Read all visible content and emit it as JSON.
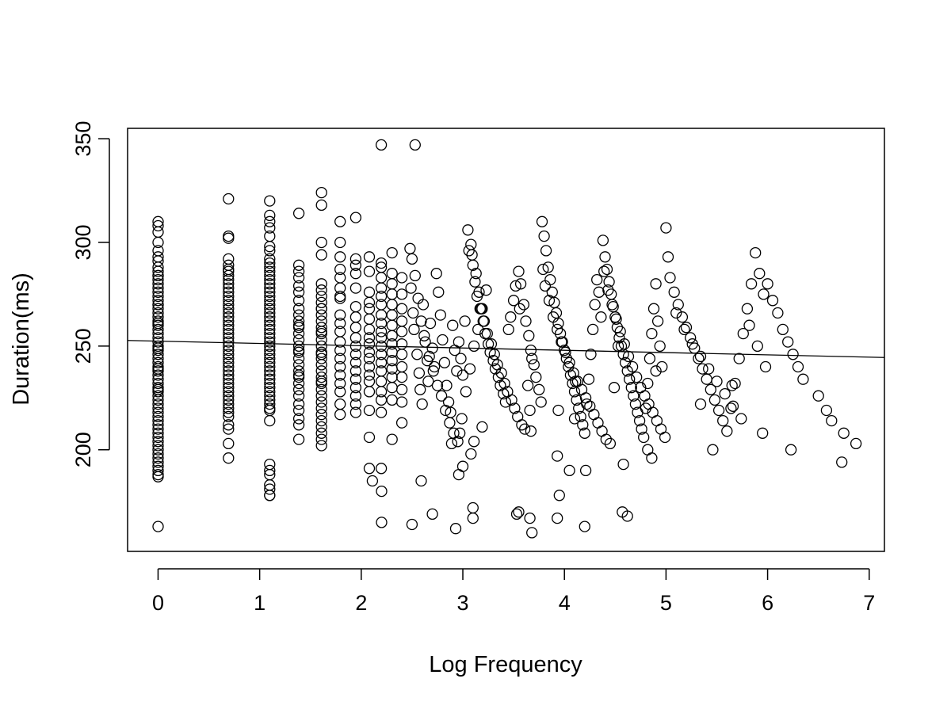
{
  "chart_data": {
    "type": "scatter",
    "xlabel": "Log Frequency",
    "ylabel": "Duration(ms)",
    "xlim": [
      -0.3,
      7.15
    ],
    "ylim": [
      151,
      355
    ],
    "x_ticks": [
      0,
      1,
      2,
      3,
      4,
      5,
      6,
      7
    ],
    "y_ticks": [
      200,
      250,
      300,
      350
    ],
    "regression_line": {
      "x": [
        -0.3,
        7.15
      ],
      "y": [
        252.7,
        244.5
      ]
    },
    "points": {
      "x": [
        0,
        0,
        0,
        0,
        0,
        0,
        0,
        0,
        0,
        0,
        0,
        0,
        0,
        0,
        0,
        0,
        0,
        0,
        0,
        0,
        0,
        0,
        0,
        0,
        0,
        0,
        0,
        0,
        0,
        0,
        0,
        0,
        0,
        0,
        0,
        0,
        0,
        0,
        0,
        0,
        0,
        0,
        0,
        0,
        0,
        0,
        0,
        0,
        0,
        0,
        0,
        0,
        0,
        0,
        0,
        0,
        0,
        0,
        0,
        0,
        0,
        0,
        0,
        0,
        0,
        0.693,
        0.693,
        0.693,
        0.693,
        0.693,
        0.693,
        0.693,
        0.693,
        0.693,
        0.693,
        0.693,
        0.693,
        0.693,
        0.693,
        0.693,
        0.693,
        0.693,
        0.693,
        0.693,
        0.693,
        0.693,
        0.693,
        0.693,
        0.693,
        0.693,
        0.693,
        0.693,
        0.693,
        0.693,
        0.693,
        0.693,
        0.693,
        0.693,
        0.693,
        0.693,
        0.693,
        0.693,
        0.693,
        0.693,
        0.693,
        0.693,
        0.693,
        0.693,
        0.693,
        0.693,
        1.099,
        1.099,
        1.099,
        1.099,
        1.099,
        1.099,
        1.099,
        1.099,
        1.099,
        1.099,
        1.099,
        1.099,
        1.099,
        1.099,
        1.099,
        1.099,
        1.099,
        1.099,
        1.099,
        1.099,
        1.099,
        1.099,
        1.099,
        1.099,
        1.099,
        1.099,
        1.099,
        1.099,
        1.099,
        1.099,
        1.099,
        1.099,
        1.099,
        1.099,
        1.099,
        1.099,
        1.099,
        1.099,
        1.099,
        1.099,
        1.099,
        1.099,
        1.099,
        1.099,
        1.099,
        1.099,
        1.099,
        1.099,
        1.099,
        1.099,
        1.386,
        1.386,
        1.386,
        1.386,
        1.386,
        1.386,
        1.386,
        1.386,
        1.386,
        1.386,
        1.386,
        1.386,
        1.386,
        1.386,
        1.386,
        1.386,
        1.386,
        1.386,
        1.386,
        1.386,
        1.386,
        1.386,
        1.386,
        1.386,
        1.386,
        1.386,
        1.386,
        1.386,
        1.386,
        1.386,
        1.609,
        1.609,
        1.609,
        1.609,
        1.609,
        1.609,
        1.609,
        1.609,
        1.609,
        1.609,
        1.609,
        1.609,
        1.609,
        1.609,
        1.609,
        1.609,
        1.609,
        1.609,
        1.609,
        1.609,
        1.609,
        1.609,
        1.609,
        1.609,
        1.609,
        1.609,
        1.609,
        1.609,
        1.609,
        1.609,
        1.609,
        1.609,
        1.609,
        1.609,
        1.609,
        1.792,
        1.792,
        1.792,
        1.792,
        1.792,
        1.792,
        1.792,
        1.792,
        1.792,
        1.792,
        1.792,
        1.792,
        1.792,
        1.792,
        1.792,
        1.792,
        1.792,
        1.792,
        1.792,
        1.792,
        1.946,
        1.946,
        1.946,
        1.946,
        1.946,
        1.946,
        1.946,
        1.946,
        1.946,
        1.946,
        1.946,
        1.946,
        1.946,
        1.946,
        1.946,
        1.946,
        1.946,
        1.946,
        2.079,
        2.079,
        2.079,
        2.079,
        2.079,
        2.079,
        2.079,
        2.079,
        2.079,
        2.079,
        2.079,
        2.079,
        2.079,
        2.079,
        2.079,
        2.079,
        2.079,
        2.079,
        2.197,
        2.197,
        2.197,
        2.197,
        2.197,
        2.197,
        2.197,
        2.197,
        2.197,
        2.197,
        2.197,
        2.197,
        2.197,
        2.197,
        2.197,
        2.197,
        2.197,
        2.197,
        2.197,
        2.197,
        2.303,
        2.303,
        2.303,
        2.303,
        2.303,
        2.303,
        2.303,
        2.303,
        2.303,
        2.303,
        2.303,
        2.303,
        2.303,
        2.303,
        2.303,
        2.303,
        2.4,
        2.4,
        2.4,
        2.4,
        2.4,
        2.4,
        2.4,
        2.4,
        2.4,
        2.4,
        2.4,
        2.4,
        2.48,
        2.49,
        2.51,
        2.52,
        2.55,
        2.57,
        2.58,
        2.6,
        2.61,
        2.62,
        2.65,
        2.66,
        2.68,
        2.7,
        2.72,
        2.74,
        2.76,
        2.78,
        2.8,
        2.82,
        2.84,
        2.86,
        2.88,
        2.9,
        2.92,
        2.94,
        2.96,
        2.98,
        3.0,
        3.02,
        2.5,
        2.53,
        2.56,
        2.59,
        2.63,
        2.67,
        2.71,
        2.75,
        2.79,
        2.83,
        2.87,
        2.91,
        2.95,
        2.99,
        3.03,
        3.07,
        3.11,
        3.15,
        3.19,
        3.23,
        3.05,
        3.08,
        3.1,
        3.12,
        3.14,
        3.17,
        3.2,
        3.22,
        3.25,
        3.27,
        3.3,
        3.32,
        3.35,
        3.37,
        3.4,
        3.42,
        3.45,
        3.47,
        3.5,
        3.52,
        3.55,
        3.57,
        3.6,
        3.62,
        3.65,
        3.67,
        3.7,
        3.72,
        3.75,
        3.77,
        3.06,
        3.09,
        3.13,
        3.16,
        3.18,
        3.21,
        3.24,
        3.28,
        3.31,
        3.34,
        3.38,
        3.41,
        3.44,
        3.48,
        3.51,
        3.54,
        3.58,
        3.61,
        3.64,
        3.68,
        3.78,
        3.8,
        3.82,
        3.84,
        3.86,
        3.88,
        3.9,
        3.92,
        3.94,
        3.96,
        3.98,
        4.0,
        4.02,
        4.04,
        4.06,
        4.08,
        4.1,
        4.12,
        4.14,
        4.16,
        4.18,
        4.2,
        4.22,
        4.24,
        4.26,
        4.28,
        4.3,
        4.32,
        4.34,
        4.36,
        3.79,
        3.81,
        3.85,
        3.89,
        3.93,
        3.97,
        4.01,
        4.05,
        4.09,
        4.13,
        4.17,
        4.21,
        4.25,
        4.29,
        4.33,
        4.37,
        4.41,
        4.45,
        4.49,
        4.53,
        4.38,
        4.4,
        4.42,
        4.44,
        4.46,
        4.48,
        4.5,
        4.52,
        4.54,
        4.56,
        4.58,
        4.6,
        4.62,
        4.64,
        4.66,
        4.68,
        4.7,
        4.72,
        4.74,
        4.76,
        4.78,
        4.8,
        4.82,
        4.84,
        4.86,
        4.88,
        4.9,
        4.92,
        4.94,
        4.96,
        4.39,
        4.43,
        4.47,
        4.51,
        4.55,
        4.59,
        4.63,
        4.67,
        4.71,
        4.75,
        4.79,
        4.83,
        4.87,
        4.91,
        4.95,
        4.99,
        5.0,
        5.04,
        5.08,
        5.12,
        5.16,
        5.2,
        5.24,
        5.28,
        5.32,
        5.36,
        5.4,
        5.44,
        5.48,
        5.52,
        5.56,
        5.6,
        5.64,
        5.68,
        5.72,
        5.76,
        5.8,
        5.84,
        5.88,
        5.92,
        5.96,
        5.02,
        5.1,
        5.18,
        5.26,
        5.34,
        5.42,
        5.5,
        5.58,
        5.66,
        5.74,
        5.82,
        5.9,
        5.98,
        6.0,
        6.05,
        6.1,
        6.15,
        6.2,
        6.25,
        6.3,
        6.35,
        6.5,
        6.58,
        6.63,
        6.75,
        6.87,
        2.2,
        2.11,
        2.2,
        2.53,
        2.7,
        2.93,
        3.0,
        3.1,
        3.53,
        3.66,
        3.68,
        3.95,
        3.93,
        4.05,
        4.21,
        4.58,
        4.62,
        4.82,
        4.86,
        5.46,
        5.95,
        6.23,
        2.59,
        2.89,
        2.97,
        3.08,
        3.11,
        3.19,
        3.56,
        3.66,
        3.67,
        3.94,
        4.1,
        4.11,
        4.9,
        5.34,
        5.65,
        6.73,
        2.5,
        2.96,
        3.1,
        3.55,
        3.93,
        4.2,
        4.57,
        0,
        1.099,
        1.099,
        1.099,
        0.693
      ],
      "y": [
        310,
        308,
        305,
        300,
        296,
        293,
        291,
        288,
        286,
        284,
        282,
        280,
        278,
        276,
        274,
        272,
        270,
        268,
        266,
        264,
        262,
        260,
        258,
        256,
        254,
        252,
        250,
        248,
        246,
        244,
        242,
        240,
        238,
        236,
        234,
        232,
        230,
        228,
        226,
        224,
        222,
        220,
        218,
        216,
        214,
        212,
        210,
        208,
        206,
        204,
        202,
        200,
        198,
        196,
        194,
        192,
        190,
        188,
        187,
        284,
        270,
        261,
        249,
        239,
        229,
        321,
        303,
        302,
        292,
        289,
        287,
        286,
        284,
        282,
        280,
        278,
        276,
        274,
        272,
        270,
        268,
        266,
        264,
        262,
        260,
        258,
        256,
        254,
        252,
        250,
        248,
        246,
        244,
        242,
        240,
        238,
        236,
        234,
        232,
        230,
        228,
        226,
        224,
        222,
        220,
        218,
        216,
        212,
        210,
        203,
        320,
        313,
        310,
        307,
        303,
        298,
        296,
        292,
        290,
        288,
        286,
        284,
        282,
        280,
        278,
        276,
        274,
        272,
        270,
        268,
        266,
        264,
        262,
        260,
        258,
        256,
        254,
        252,
        250,
        248,
        246,
        244,
        242,
        240,
        238,
        236,
        234,
        232,
        230,
        228,
        226,
        224,
        222,
        220,
        214,
        193,
        183,
        181,
        178,
        219,
        314,
        289,
        286,
        283,
        279,
        276,
        272,
        268,
        265,
        262,
        259,
        256,
        253,
        250,
        247,
        244,
        241,
        238,
        235,
        232,
        229,
        226,
        222,
        219,
        215,
        212,
        205,
        260,
        248,
        236,
        324,
        318,
        300,
        294,
        280,
        277,
        274,
        271,
        268,
        265,
        262,
        259,
        256,
        253,
        250,
        247,
        244,
        241,
        238,
        235,
        232,
        229,
        226,
        223,
        220,
        217,
        214,
        211,
        208,
        205,
        202,
        246,
        257,
        268,
        233,
        310,
        300,
        293,
        287,
        283,
        278,
        273,
        265,
        261,
        257,
        252,
        248,
        244,
        240,
        236,
        232,
        228,
        222,
        217,
        274,
        312,
        292,
        289,
        278,
        269,
        264,
        259,
        254,
        250,
        246,
        242,
        238,
        234,
        230,
        226,
        222,
        218,
        285,
        293,
        286,
        276,
        271,
        268,
        263,
        258,
        254,
        251,
        247,
        244,
        240,
        236,
        233,
        228,
        219,
        206,
        191,
        347,
        290,
        288,
        283,
        278,
        274,
        270,
        265,
        261,
        257,
        254,
        250,
        246,
        242,
        238,
        233,
        228,
        224,
        218,
        191,
        295,
        285,
        280,
        275,
        270,
        265,
        260,
        255,
        251,
        247,
        243,
        239,
        235,
        230,
        224,
        205,
        283,
        275,
        268,
        262,
        257,
        251,
        246,
        240,
        235,
        229,
        223,
        213,
        297,
        278,
        266,
        258,
        246,
        237,
        229,
        222,
        270,
        255,
        243,
        233,
        261,
        249,
        240,
        285,
        276,
        265,
        253,
        242,
        231,
        223,
        218,
        260,
        248,
        238,
        252,
        244,
        236,
        262,
        292,
        284,
        273,
        262,
        252,
        245,
        238,
        231,
        226,
        219,
        213,
        208,
        204,
        215,
        228,
        239,
        250,
        258,
        268,
        277,
        306,
        299,
        289,
        281,
        274,
        268,
        262,
        256,
        251,
        247,
        243,
        239,
        235,
        231,
        227,
        223,
        258,
        264,
        272,
        279,
        286,
        280,
        270,
        262,
        255,
        248,
        241,
        235,
        229,
        223,
        296,
        294,
        285,
        276,
        268,
        262,
        256,
        251,
        246,
        241,
        237,
        232,
        228,
        224,
        220,
        216,
        212,
        210,
        231,
        244,
        310,
        303,
        296,
        288,
        282,
        276,
        271,
        266,
        261,
        256,
        252,
        248,
        244,
        240,
        236,
        232,
        228,
        224,
        220,
        216,
        212,
        208,
        222,
        234,
        246,
        258,
        270,
        282,
        276,
        264,
        287,
        279,
        272,
        264,
        258,
        252,
        247,
        242,
        237,
        233,
        229,
        225,
        221,
        217,
        213,
        209,
        205,
        203,
        230,
        250,
        301,
        293,
        287,
        281,
        275,
        269,
        264,
        259,
        254,
        250,
        246,
        242,
        238,
        234,
        230,
        226,
        222,
        218,
        214,
        210,
        206,
        220,
        232,
        244,
        256,
        268,
        280,
        262,
        250,
        240,
        286,
        277,
        270,
        263,
        257,
        251,
        245,
        240,
        235,
        230,
        226,
        222,
        218,
        214,
        210,
        206,
        307,
        283,
        276,
        270,
        264,
        259,
        254,
        249,
        244,
        239,
        234,
        229,
        224,
        219,
        214,
        209,
        220,
        232,
        244,
        256,
        268,
        280,
        295,
        285,
        275,
        293,
        266,
        258,
        251,
        245,
        239,
        233,
        227,
        221,
        215,
        260,
        250,
        240,
        280,
        272,
        266,
        258,
        252,
        246,
        240,
        234,
        226,
        219,
        214,
        208,
        203,
        165,
        185,
        180,
        347,
        169,
        162,
        192,
        167,
        169,
        167,
        160,
        178,
        197,
        190,
        190,
        193,
        168,
        200,
        196,
        200,
        208,
        200,
        185,
        203,
        208,
        198,
        204,
        211,
        268,
        219,
        209,
        219,
        215,
        233,
        238,
        222,
        231,
        194,
        164,
        188,
        172,
        170,
        167,
        163,
        170,
        163,
        178,
        188,
        190,
        196
      ]
    }
  }
}
